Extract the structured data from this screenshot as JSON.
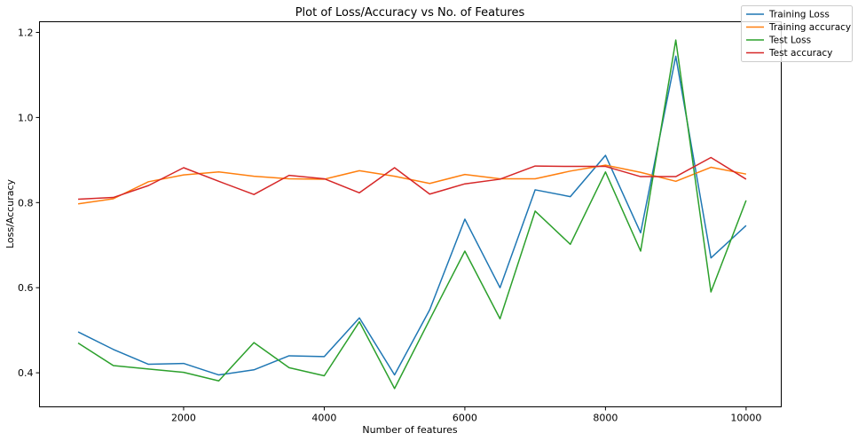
{
  "chart_data": {
    "type": "line",
    "title": "Plot of Loss/Accuracy vs No. of Features",
    "xlabel": "Number of features",
    "ylabel": "Loss/Accuracy",
    "xlim": [
      -50,
      10500
    ],
    "ylim": [
      0.32,
      1.225
    ],
    "xticks": [
      2000,
      4000,
      6000,
      8000,
      10000
    ],
    "yticks": [
      0.4,
      0.6,
      0.8,
      1.0,
      1.2
    ],
    "xtick_labels": [
      "2000",
      "4000",
      "6000",
      "8000",
      "10000"
    ],
    "ytick_labels": [
      "0.4",
      "0.6",
      "0.8",
      "1.0",
      "1.2"
    ],
    "grid": false,
    "legend_position": "top-right (outside)",
    "x": [
      500,
      1000,
      1500,
      2000,
      2500,
      3000,
      3500,
      4000,
      4500,
      5000,
      5500,
      6000,
      6500,
      7000,
      7500,
      8000,
      8500,
      9000,
      9500,
      10000
    ],
    "series": [
      {
        "name": "Training Loss",
        "color": "#1f77b4",
        "values": [
          0.496,
          0.455,
          0.42,
          0.422,
          0.395,
          0.407,
          0.44,
          0.438,
          0.529,
          0.395,
          0.548,
          0.761,
          0.6,
          0.83,
          0.814,
          0.911,
          0.729,
          1.144,
          0.67,
          0.746
        ]
      },
      {
        "name": "Training accuracy",
        "color": "#ff7f0e",
        "values": [
          0.797,
          0.809,
          0.849,
          0.865,
          0.872,
          0.862,
          0.856,
          0.855,
          0.875,
          0.862,
          0.845,
          0.866,
          0.856,
          0.856,
          0.874,
          0.888,
          0.871,
          0.85,
          0.883,
          0.867
        ]
      },
      {
        "name": "Test Loss",
        "color": "#2ca02c",
        "values": [
          0.47,
          0.417,
          0.409,
          0.401,
          0.381,
          0.471,
          0.412,
          0.393,
          0.52,
          0.363,
          0.525,
          0.686,
          0.527,
          0.78,
          0.702,
          0.872,
          0.686,
          1.182,
          0.59,
          0.805
        ]
      },
      {
        "name": "Test accuracy",
        "color": "#d62728",
        "values": [
          0.808,
          0.812,
          0.84,
          0.882,
          0.85,
          0.819,
          0.864,
          0.856,
          0.823,
          0.882,
          0.82,
          0.844,
          0.855,
          0.886,
          0.885,
          0.885,
          0.861,
          0.861,
          0.906,
          0.855
        ]
      }
    ]
  }
}
